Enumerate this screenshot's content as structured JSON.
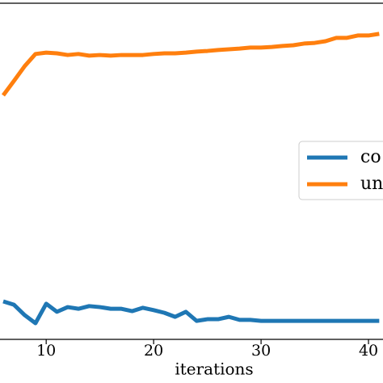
{
  "chart_data": {
    "type": "line",
    "xlabel": "iterations",
    "x": [
      6,
      7,
      8,
      9,
      10,
      11,
      12,
      13,
      14,
      15,
      16,
      17,
      18,
      19,
      20,
      21,
      22,
      23,
      24,
      25,
      26,
      27,
      28,
      29,
      30,
      31,
      32,
      33,
      34,
      35,
      36,
      37,
      38,
      39,
      40,
      41
    ],
    "series": [
      {
        "name": "co",
        "color": "#1f77b4",
        "values": [
          11.3,
          10.3,
          7.2,
          4.8,
          10.6,
          8.2,
          9.6,
          9.1,
          9.9,
          9.6,
          9.1,
          9.1,
          8.4,
          9.4,
          8.7,
          7.9,
          6.7,
          8.2,
          5.5,
          6.0,
          6.0,
          6.7,
          5.8,
          5.8,
          5.5,
          5.5,
          5.5,
          5.5,
          5.5,
          5.5,
          5.5,
          5.5,
          5.5,
          5.5,
          5.5,
          5.5
        ]
      },
      {
        "name": "un",
        "color": "#ff7f0e",
        "values": [
          72.6,
          76.9,
          81.3,
          84.9,
          85.3,
          85.1,
          84.6,
          84.9,
          84.4,
          84.6,
          84.4,
          84.6,
          84.6,
          84.6,
          84.9,
          85.1,
          85.1,
          85.3,
          85.6,
          85.8,
          86.1,
          86.3,
          86.5,
          86.8,
          86.8,
          87.0,
          87.3,
          87.5,
          88.0,
          88.2,
          88.7,
          89.7,
          89.7,
          90.4,
          90.4,
          90.9
        ]
      }
    ],
    "xlim": [
      5.7,
      41.35
    ],
    "xticks": [
      10,
      20,
      30,
      40
    ],
    "ylim": [
      0,
      100
    ],
    "legend": "right"
  }
}
